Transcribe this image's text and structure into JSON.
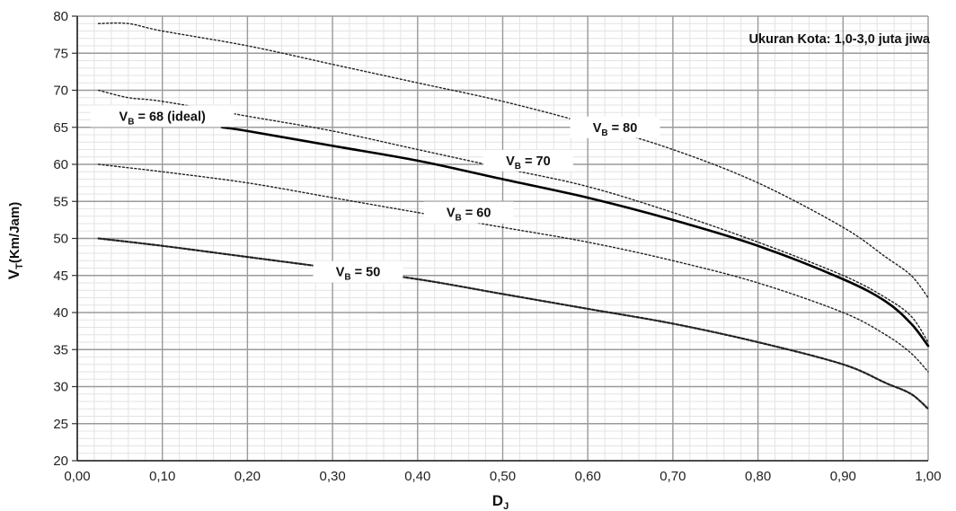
{
  "chart_data": {
    "type": "line",
    "title": "",
    "xlabel": "D",
    "xlabel_sub": "J",
    "ylabel": "V",
    "ylabel_sub": "T",
    "ylabel_unit": "(Km/Jam)",
    "xlim": [
      0,
      1
    ],
    "ylim": [
      20,
      80
    ],
    "x_ticks": [
      "0,00",
      "0,10",
      "0,20",
      "0,30",
      "0,40",
      "0,50",
      "0,60",
      "0,70",
      "0,80",
      "0,90",
      "1,00"
    ],
    "y_ticks": [
      "20",
      "25",
      "30",
      "35",
      "40",
      "45",
      "50",
      "55",
      "60",
      "65",
      "70",
      "75",
      "80"
    ],
    "grid": true,
    "annotation": "Ukuran Kota: 1,0-3,0 juta jiwa",
    "series": [
      {
        "name": "VB = 80",
        "label_prefix": "V",
        "label_sub": "B",
        "label_suffix": " = 80",
        "style": "dotted",
        "x": [
          0.025,
          0.06,
          0.1,
          0.2,
          0.3,
          0.4,
          0.5,
          0.6,
          0.7,
          0.8,
          0.9,
          0.95,
          0.98,
          1.0
        ],
        "y": [
          79,
          79,
          78,
          76,
          73.5,
          71,
          68.5,
          65.5,
          62,
          57.5,
          51.5,
          47.5,
          45,
          42
        ]
      },
      {
        "name": "VB = 70",
        "label_prefix": "V",
        "label_sub": "B",
        "label_suffix": " = 70",
        "style": "dotted",
        "x": [
          0.025,
          0.06,
          0.1,
          0.2,
          0.3,
          0.4,
          0.5,
          0.6,
          0.7,
          0.8,
          0.9,
          0.95,
          0.98,
          1.0
        ],
        "y": [
          70,
          69,
          68.5,
          66.5,
          64.5,
          62,
          59.5,
          57,
          53.5,
          49.5,
          45,
          42,
          39.5,
          36
        ]
      },
      {
        "name": "VB = 68 (ideal)",
        "label_prefix": "V",
        "label_sub": "B",
        "label_suffix": " = 68 (ideal)",
        "style": "solid",
        "x": [
          0.17,
          0.2,
          0.3,
          0.4,
          0.5,
          0.6,
          0.7,
          0.8,
          0.9,
          0.95,
          0.98,
          1.0
        ],
        "y": [
          65,
          64.5,
          62.5,
          60.5,
          58,
          55.5,
          52.5,
          49,
          44.5,
          41.5,
          38.5,
          35.5
        ]
      },
      {
        "name": "VB = 60",
        "label_prefix": "V",
        "label_sub": "B",
        "label_suffix": " = 60",
        "style": "dotted",
        "x": [
          0.025,
          0.1,
          0.2,
          0.3,
          0.4,
          0.5,
          0.6,
          0.7,
          0.8,
          0.9,
          0.95,
          0.98,
          1.0
        ],
        "y": [
          60,
          59,
          57.5,
          55.5,
          53.5,
          51.5,
          49.5,
          47,
          44,
          40,
          37,
          34.5,
          32
        ]
      },
      {
        "name": "VB = 50",
        "label_prefix": "V",
        "label_sub": "B",
        "label_suffix": " = 50",
        "style": "dashed",
        "x": [
          0.025,
          0.1,
          0.2,
          0.3,
          0.4,
          0.5,
          0.6,
          0.7,
          0.8,
          0.9,
          0.95,
          0.98,
          1.0
        ],
        "y": [
          50,
          49,
          47.5,
          46,
          44.5,
          42.5,
          40.5,
          38.5,
          36,
          33,
          30.5,
          29,
          27
        ]
      }
    ]
  }
}
